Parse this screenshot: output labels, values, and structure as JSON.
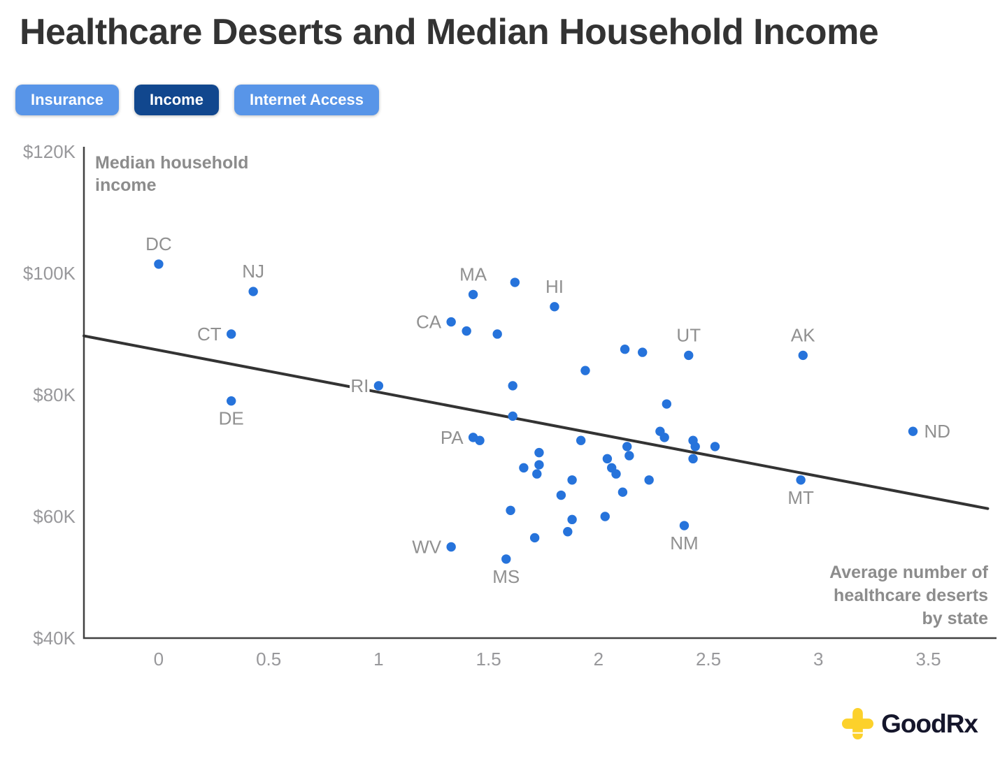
{
  "page_title": "Healthcare Deserts and Median Household Income",
  "filter_buttons": [
    {
      "label": "Insurance",
      "active": false
    },
    {
      "label": "Income",
      "active": true
    },
    {
      "label": "Internet Access",
      "active": false
    }
  ],
  "branding": {
    "logo_text": "GoodRx"
  },
  "colors": {
    "dot": "#2673DB",
    "button_active": "#11478E",
    "button_inactive": "#5895E8",
    "trend_line": "#333333",
    "axis_line": "#414141",
    "tick_text": "#98989B",
    "axis_title_text": "#8C8C8C",
    "state_label_text": "#909090",
    "title_text": "#333333",
    "logo_yellow": "#FCD12B",
    "logo_dark": "#15162B"
  },
  "chart_data": {
    "type": "scatter",
    "title": "Healthcare Deserts and Median Household Income",
    "xlabel": "Average number of healthcare deserts by state",
    "ylabel": "Median household income",
    "xlabel_lines": [
      "Average number of",
      "healthcare deserts",
      "by state"
    ],
    "ylabel_lines": [
      "Median household",
      "income"
    ],
    "x_unit": "average healthcare deserts",
    "y_unit": "USD thousands",
    "xlim": [
      -0.34,
      3.81
    ],
    "ylim": [
      40,
      120.8
    ],
    "grid": false,
    "legend": "none",
    "x_ticks": [
      {
        "value": 0,
        "label": "0"
      },
      {
        "value": 0.5,
        "label": "0.5"
      },
      {
        "value": 1,
        "label": "1"
      },
      {
        "value": 1.5,
        "label": "1.5"
      },
      {
        "value": 2,
        "label": "2"
      },
      {
        "value": 2.5,
        "label": "2.5"
      },
      {
        "value": 3,
        "label": "3"
      },
      {
        "value": 3.5,
        "label": "3.5"
      }
    ],
    "y_ticks": [
      {
        "value": 120,
        "label": "$120K"
      },
      {
        "value": 100,
        "label": "$100K"
      },
      {
        "value": 80,
        "label": "$80K"
      },
      {
        "value": 60,
        "label": "$60K"
      },
      {
        "value": 40,
        "label": "$40K"
      }
    ],
    "trendline": {
      "x1": -0.34,
      "y1": 89.7,
      "x2": 3.77,
      "y2": 61.3
    },
    "points": [
      {
        "state": "DC",
        "x": 0.0,
        "y": 101.5,
        "label_pos": "above"
      },
      {
        "state": "NJ",
        "x": 0.43,
        "y": 97.0,
        "label_pos": "above"
      },
      {
        "state": "CT",
        "x": 0.33,
        "y": 90.0,
        "label_pos": "left"
      },
      {
        "state": "DE",
        "x": 0.33,
        "y": 79.0,
        "label_pos": "below"
      },
      {
        "state": "RI",
        "x": 1.0,
        "y": 81.5,
        "label_pos": "left"
      },
      {
        "state": "CA",
        "x": 1.33,
        "y": 92.0,
        "label_pos": "left"
      },
      {
        "state": "MA",
        "x": 1.43,
        "y": 96.5,
        "label_pos": "above"
      },
      {
        "state": "HI",
        "x": 1.8,
        "y": 94.5,
        "label_pos": "above"
      },
      {
        "state": "PA",
        "x": 1.43,
        "y": 73.0,
        "label_pos": "left"
      },
      {
        "state": "WV",
        "x": 1.33,
        "y": 55.0,
        "label_pos": "left"
      },
      {
        "state": "MS",
        "x": 1.58,
        "y": 53.0,
        "label_pos": "below"
      },
      {
        "state": "UT",
        "x": 2.41,
        "y": 86.5,
        "label_pos": "above"
      },
      {
        "state": "AK",
        "x": 2.93,
        "y": 86.5,
        "label_pos": "above"
      },
      {
        "state": "MT",
        "x": 2.92,
        "y": 66.0,
        "label_pos": "below"
      },
      {
        "state": "ND",
        "x": 3.43,
        "y": 74.0,
        "label_pos": "right"
      },
      {
        "state": "NM",
        "x": 2.39,
        "y": 58.5,
        "label_pos": "below"
      },
      {
        "state": "",
        "x": 1.62,
        "y": 98.5
      },
      {
        "state": "",
        "x": 1.4,
        "y": 90.5
      },
      {
        "state": "",
        "x": 1.54,
        "y": 90.0
      },
      {
        "state": "",
        "x": 1.94,
        "y": 84.0
      },
      {
        "state": "",
        "x": 1.61,
        "y": 81.5
      },
      {
        "state": "",
        "x": 1.61,
        "y": 76.5
      },
      {
        "state": "",
        "x": 1.46,
        "y": 72.5
      },
      {
        "state": "",
        "x": 2.12,
        "y": 87.5
      },
      {
        "state": "",
        "x": 2.2,
        "y": 87.0
      },
      {
        "state": "",
        "x": 2.31,
        "y": 78.5
      },
      {
        "state": "",
        "x": 2.28,
        "y": 74.0
      },
      {
        "state": "",
        "x": 2.3,
        "y": 73.0
      },
      {
        "state": "",
        "x": 2.43,
        "y": 72.5
      },
      {
        "state": "",
        "x": 2.44,
        "y": 71.5
      },
      {
        "state": "",
        "x": 2.53,
        "y": 71.5
      },
      {
        "state": "",
        "x": 2.43,
        "y": 69.5
      },
      {
        "state": "",
        "x": 1.92,
        "y": 72.5
      },
      {
        "state": "",
        "x": 2.13,
        "y": 71.5
      },
      {
        "state": "",
        "x": 2.14,
        "y": 70.0
      },
      {
        "state": "",
        "x": 2.04,
        "y": 69.5
      },
      {
        "state": "",
        "x": 1.73,
        "y": 70.5
      },
      {
        "state": "",
        "x": 1.73,
        "y": 68.5
      },
      {
        "state": "",
        "x": 1.72,
        "y": 67.0
      },
      {
        "state": "",
        "x": 1.66,
        "y": 68.0
      },
      {
        "state": "",
        "x": 2.06,
        "y": 68.0
      },
      {
        "state": "",
        "x": 2.08,
        "y": 67.0
      },
      {
        "state": "",
        "x": 1.88,
        "y": 66.0
      },
      {
        "state": "",
        "x": 2.23,
        "y": 66.0
      },
      {
        "state": "",
        "x": 1.83,
        "y": 63.5
      },
      {
        "state": "",
        "x": 2.11,
        "y": 64.0
      },
      {
        "state": "",
        "x": 1.6,
        "y": 61.0
      },
      {
        "state": "",
        "x": 1.88,
        "y": 59.5
      },
      {
        "state": "",
        "x": 1.86,
        "y": 57.5
      },
      {
        "state": "",
        "x": 2.03,
        "y": 60.0
      },
      {
        "state": "",
        "x": 1.71,
        "y": 56.5
      }
    ]
  }
}
